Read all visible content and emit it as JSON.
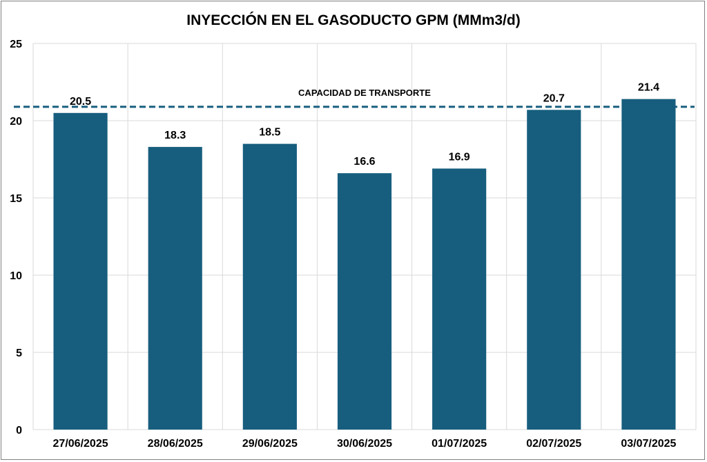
{
  "chart_data": {
    "type": "bar",
    "title": "INYECCIÓN EN EL GASODUCTO GPM (MMm3/d)",
    "xlabel": "",
    "ylabel": "",
    "categories": [
      "27/06/2025",
      "28/06/2025",
      "29/06/2025",
      "30/06/2025",
      "01/07/2025",
      "02/07/2025",
      "03/07/2025"
    ],
    "values": [
      20.5,
      18.3,
      18.5,
      16.6,
      16.9,
      20.7,
      21.4
    ],
    "value_labels": [
      "20.5",
      "18.3",
      "18.5",
      "16.6",
      "16.9",
      "20.7",
      "21.4"
    ],
    "ylim": [
      0,
      25
    ],
    "yticks": [
      0,
      5,
      10,
      15,
      20,
      25
    ],
    "ytick_labels": [
      "0",
      "5",
      "10",
      "15",
      "20",
      "25"
    ],
    "grid": true,
    "legend": "none",
    "bar_color": "#175e7e",
    "reference_line": {
      "label": "CAPACIDAD DE TRANSPORTE",
      "value": 20.9,
      "style": "dashed",
      "color": "#175e7e"
    }
  }
}
